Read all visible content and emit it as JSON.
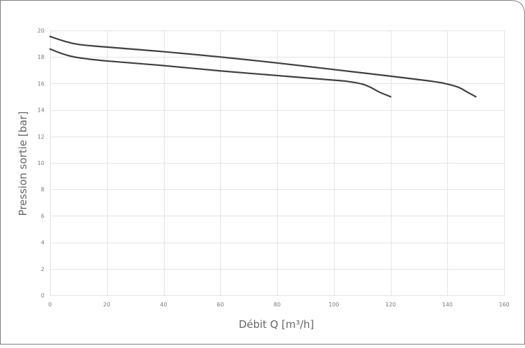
{
  "chart_data": {
    "type": "line",
    "xlabel": "Débit Q [m³/h]",
    "ylabel": "Pression sortie [bar]",
    "xlim": [
      0,
      160
    ],
    "ylim": [
      0,
      20
    ],
    "x_ticks": [
      0,
      20,
      40,
      60,
      80,
      100,
      120,
      140,
      160
    ],
    "y_ticks": [
      0,
      2,
      4,
      6,
      8,
      10,
      12,
      14,
      16,
      18,
      20
    ],
    "grid": true,
    "series": [
      {
        "color": "#3f3f3f",
        "points": [
          [
            0,
            19.55
          ],
          [
            5,
            19.2
          ],
          [
            10,
            18.95
          ],
          [
            20,
            18.75
          ],
          [
            40,
            18.4
          ],
          [
            60,
            18.0
          ],
          [
            80,
            17.55
          ],
          [
            100,
            17.05
          ],
          [
            120,
            16.55
          ],
          [
            135,
            16.15
          ],
          [
            140,
            15.95
          ],
          [
            144,
            15.7
          ],
          [
            147,
            15.35
          ],
          [
            150,
            15.0
          ]
        ]
      },
      {
        "color": "#3f3f3f",
        "points": [
          [
            0,
            18.6
          ],
          [
            5,
            18.2
          ],
          [
            10,
            17.95
          ],
          [
            20,
            17.7
          ],
          [
            40,
            17.35
          ],
          [
            60,
            16.95
          ],
          [
            80,
            16.6
          ],
          [
            100,
            16.25
          ],
          [
            105,
            16.15
          ],
          [
            110,
            15.95
          ],
          [
            113,
            15.7
          ],
          [
            116,
            15.35
          ],
          [
            120,
            15.0
          ]
        ]
      }
    ]
  }
}
